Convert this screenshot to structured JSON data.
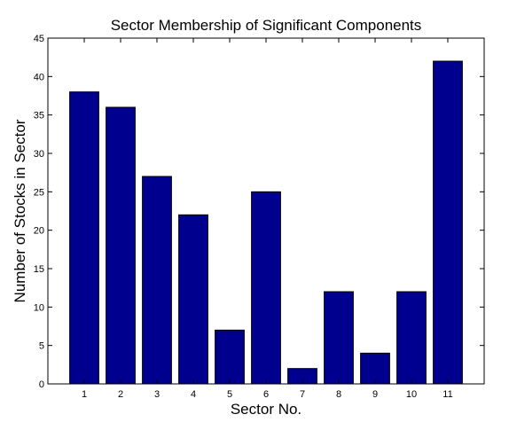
{
  "chart_data": {
    "type": "bar",
    "title": "Sector Membership of Significant Components",
    "xlabel": "Sector No.",
    "ylabel": "Number of Stocks in Sector",
    "categories": [
      "1",
      "2",
      "3",
      "4",
      "5",
      "6",
      "7",
      "8",
      "9",
      "10",
      "11"
    ],
    "values": [
      38,
      36,
      27,
      22,
      7,
      25,
      2,
      12,
      4,
      12,
      42
    ],
    "ylim": [
      0,
      45
    ],
    "yticks": [
      "0",
      "5",
      "10",
      "15",
      "20",
      "25",
      "30",
      "35",
      "40",
      "45"
    ],
    "grid": false,
    "legend": "none",
    "bar_color": "#00008f"
  }
}
